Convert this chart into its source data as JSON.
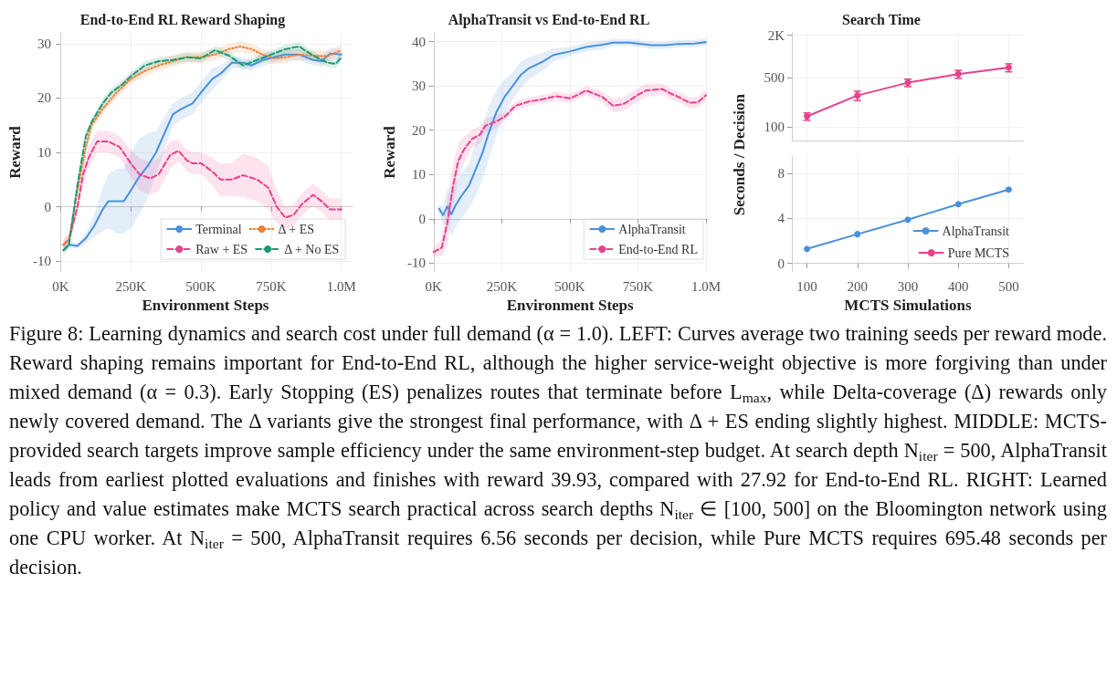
{
  "chart_data": [
    {
      "type": "line",
      "title": "End-to-End RL Reward Shaping",
      "xlabel": "Environment Steps",
      "ylabel": "Reward",
      "xlim": [
        -8000,
        1040000
      ],
      "xticks": [
        {
          "value": 0,
          "label": "0K"
        },
        {
          "value": 250000,
          "label": "250K"
        },
        {
          "value": 500000,
          "label": "500K"
        },
        {
          "value": 750000,
          "label": "750K"
        },
        {
          "value": 1000000,
          "label": "1.0M"
        }
      ],
      "ylim": [
        -12,
        32
      ],
      "yticks": [
        -10,
        0,
        10,
        20,
        30
      ],
      "grid": true,
      "legend": "bottom right",
      "marker": "none",
      "series": [
        {
          "name": "Terminal",
          "color": "#4a90d9",
          "line_style": "solid",
          "x": [
            10000,
            30000,
            60000,
            90000,
            120000,
            150000,
            170000,
            200000,
            225000,
            250000,
            280000,
            310000,
            340000,
            370000,
            400000,
            430000,
            470000,
            500000,
            540000,
            570000,
            610000,
            650000,
            680000,
            720000,
            760000,
            800000,
            850000,
            900000,
            930000,
            960000,
            1000000
          ],
          "values": [
            -8,
            -7,
            -7.2,
            -5.8,
            -3.5,
            -0.5,
            1,
            1,
            1,
            3,
            5.5,
            7.5,
            10,
            13.5,
            17,
            18,
            19,
            21,
            23.5,
            24.5,
            26.5,
            26.5,
            26,
            27,
            27.5,
            28,
            28,
            27,
            26.8,
            28.2,
            28
          ],
          "lower": [
            -8.5,
            -7.5,
            -7.7,
            -6.8,
            -5.5,
            -4.5,
            -4,
            -5,
            -5,
            -4,
            -1.5,
            1.5,
            6,
            10.5,
            15,
            16,
            17,
            19,
            21.5,
            23,
            25.5,
            25.5,
            25,
            26,
            26.5,
            27,
            27,
            26,
            25.8,
            27.2,
            27
          ],
          "upper": [
            -7.5,
            -6.5,
            -6.7,
            -4.8,
            -1.5,
            3.5,
            6,
            7,
            7,
            10,
            12.5,
            13.5,
            14,
            16.5,
            19,
            20,
            21,
            23,
            25.5,
            26,
            27.5,
            27.5,
            27,
            28,
            28.5,
            29,
            29,
            28,
            27.8,
            29.2,
            29
          ]
        },
        {
          "name": "Raw + ES",
          "color": "#e8408a",
          "line_style": "dashed",
          "x": [
            10000,
            30000,
            60000,
            80000,
            100000,
            130000,
            170000,
            210000,
            250000,
            280000,
            320000,
            350000,
            390000,
            420000,
            450000,
            470000,
            500000,
            540000,
            570000,
            610000,
            650000,
            700000,
            740000,
            770000,
            800000,
            830000,
            860000,
            900000,
            930000,
            960000,
            1000000
          ],
          "values": [
            -7,
            -6,
            0,
            6,
            9,
            12,
            12,
            11,
            8,
            6,
            5.2,
            6,
            9.5,
            10.3,
            8.5,
            8,
            8,
            6.5,
            5,
            5,
            5.8,
            5,
            3.5,
            0,
            -2,
            -1.5,
            0.5,
            2.2,
            1,
            -0.5,
            -0.5
          ],
          "lower": [
            -8,
            -7,
            -1.5,
            4,
            7,
            10,
            10,
            9,
            5.5,
            3,
            2.2,
            3,
            7,
            8.3,
            6.5,
            6,
            6,
            4,
            2,
            2,
            1.8,
            1,
            -0.5,
            -3,
            -4,
            -3.5,
            -1.5,
            0.2,
            -1,
            -2.5,
            -2.5
          ],
          "upper": [
            -6,
            -5,
            1.5,
            8,
            11,
            14,
            14,
            13,
            10.5,
            9,
            8.2,
            9,
            12,
            12.3,
            10.5,
            10,
            10,
            9,
            8,
            8,
            9.8,
            9,
            7.5,
            3,
            0,
            0.5,
            2.5,
            4.2,
            3,
            1.5,
            1.5
          ]
        },
        {
          "name": "Δ + ES",
          "color": "#f07f2f",
          "line_style": "dotted",
          "x": [
            10000,
            30000,
            60000,
            90000,
            110000,
            150000,
            200000,
            250000,
            300000,
            350000,
            400000,
            450000,
            500000,
            550000,
            600000,
            640000,
            680000,
            720000,
            760000,
            800000,
            850000,
            900000,
            950000,
            1000000
          ],
          "values": [
            -7,
            -6,
            3,
            11,
            15,
            18,
            21,
            23.5,
            25,
            26,
            26.8,
            27.5,
            27.5,
            28,
            29,
            29.5,
            29,
            28,
            27.3,
            27.5,
            28,
            27.8,
            27.7,
            28.8
          ],
          "lower": [
            -8,
            -7,
            2,
            10,
            14,
            17,
            20,
            22.5,
            24,
            25,
            25.8,
            26.5,
            26.5,
            27,
            28,
            28.5,
            28,
            27,
            26.3,
            26.5,
            27,
            26.8,
            26.7,
            27.8
          ],
          "upper": [
            -6,
            -5,
            4,
            12,
            16,
            19,
            22,
            24.5,
            26,
            27,
            27.8,
            28.5,
            28.5,
            29,
            30,
            30.5,
            30,
            29,
            28.3,
            28.5,
            29,
            28.8,
            28.7,
            29.8
          ]
        },
        {
          "name": "Δ + No ES",
          "color": "#1a9a74",
          "line_style": "dashed",
          "x": [
            10000,
            30000,
            60000,
            90000,
            110000,
            150000,
            180000,
            220000,
            250000,
            300000,
            350000,
            400000,
            450000,
            500000,
            550000,
            600000,
            650000,
            700000,
            750000,
            800000,
            850000,
            900000,
            950000,
            980000,
            1000000
          ],
          "values": [
            -8,
            -7,
            4,
            13,
            15.5,
            19,
            21,
            22.5,
            24,
            26,
            26.8,
            27,
            27.5,
            27.3,
            28.8,
            27.8,
            26,
            27,
            28,
            29,
            29.5,
            27.8,
            26.5,
            26.3,
            27.5
          ],
          "lower": [
            -8.8,
            -7.8,
            3.2,
            12.2,
            14.7,
            18.2,
            20.2,
            21.7,
            23.2,
            25.2,
            26,
            26.2,
            26.7,
            26.5,
            28,
            27,
            25.2,
            26.2,
            27.2,
            28.2,
            28.7,
            27,
            25.7,
            25.5,
            26.7
          ],
          "upper": [
            -7.2,
            -6.2,
            4.8,
            13.8,
            16.3,
            19.8,
            21.8,
            23.3,
            24.8,
            26.8,
            27.6,
            27.8,
            28.3,
            28.1,
            29.6,
            28.6,
            26.8,
            27.8,
            28.8,
            29.8,
            30.3,
            28.6,
            27.3,
            27.1,
            28.3
          ]
        }
      ],
      "annotations": [
        "Figure 8: Learning dynamics and search cost under full demand (α = 1.0). LEFT: Curves average two training seeds per reward mode. Reward shaping remains important for End-to-End RL, although the higher service-weight objective is more forgiving than under mixed demand (α = 0.3). Early Stopping (ES) penalizes routes that terminate before L$_{max}$, while Delta-coverage (Δ) rewards only newly covered demand. The Δ variants give the strongest final performance, with Δ + ES ending slightly highest. MIDDLE: MCTS-provided search targets improve sample efficiency under the same environment-step budget. At search depth N$_{iter}$ = 500, AlphaTransit leads from earliest plotted evaluations and finishes with reward 39.93, compared with 27.92 for End-to-End RL. RIGHT: Learned policy and value estimates make MCTS search practical across search depths N$_{iter}$ ∈ [100, 500] on the Bloomington network using one CPU worker. At N$_{iter}$ = 500, AlphaTransit requires 6.56 seconds per decision, while Pure MCTS requires 695.48 seconds per decision."
      ]
    },
    {
      "type": "line",
      "title": "AlphaTransit vs End-to-End RL",
      "xlabel": "Environment Steps",
      "ylabel": "Reward",
      "xlim": [
        -3000,
        1005000
      ],
      "xticks": [
        {
          "value": 0,
          "label": "0K"
        },
        {
          "value": 250000,
          "label": "250K"
        },
        {
          "value": 500000,
          "label": "500K"
        },
        {
          "value": 750000,
          "label": "750K"
        },
        {
          "value": 1000000,
          "label": "1.0M"
        }
      ],
      "ylim": [
        -12,
        42
      ],
      "yticks": [
        -10,
        0,
        10,
        20,
        30,
        40
      ],
      "grid": true,
      "legend": "bottom right",
      "marker": "none",
      "series": [
        {
          "name": "AlphaTransit",
          "color": "#4a90d9",
          "line_style": "solid",
          "x": [
            20000,
            35000,
            50000,
            65000,
            80000,
            100000,
            130000,
            150000,
            180000,
            200000,
            230000,
            260000,
            290000,
            320000,
            350000,
            400000,
            440000,
            500000,
            560000,
            620000,
            660000,
            720000,
            800000,
            850000,
            900000,
            960000,
            1000000
          ],
          "values": [
            2.3,
            0.8,
            2.8,
            1,
            3,
            5,
            7.5,
            10.5,
            15,
            19,
            24,
            27.5,
            30,
            32.5,
            34,
            35.5,
            37,
            37.8,
            38.8,
            39.3,
            39.8,
            39.8,
            39.2,
            39.2,
            39.5,
            39.6,
            39.9
          ],
          "lower": [
            1.3,
            -1.2,
            -1.2,
            -4,
            -2,
            0,
            2.5,
            4.5,
            9,
            13,
            19,
            23.5,
            27,
            29.5,
            31.5,
            33.5,
            35.5,
            36.8,
            37.8,
            38.3,
            39,
            39,
            38.4,
            38.4,
            38.7,
            38.8,
            39.13
          ],
          "upper": [
            3.3,
            2.8,
            6.8,
            6,
            8,
            10,
            12.5,
            16.5,
            21,
            25,
            29,
            31.5,
            33,
            35.5,
            36.5,
            37.5,
            38.5,
            38.8,
            39.8,
            40.3,
            40.6,
            40.6,
            40,
            40,
            40.3,
            40.4,
            40.73
          ]
        },
        {
          "name": "End-to-End RL",
          "color": "#e8408a",
          "line_style": "dashed",
          "x": [
            0,
            30000,
            50000,
            70000,
            90000,
            110000,
            140000,
            170000,
            190000,
            230000,
            260000,
            300000,
            350000,
            400000,
            450000,
            500000,
            530000,
            560000,
            620000,
            660000,
            700000,
            750000,
            780000,
            840000,
            870000,
            900000,
            940000,
            970000,
            1000000
          ],
          "values": [
            -7.5,
            -6.5,
            -1,
            7,
            13,
            15.5,
            18,
            19,
            21,
            22,
            23,
            25.5,
            26.5,
            27,
            27.7,
            27.2,
            28,
            29,
            27.5,
            25.5,
            26,
            28,
            29,
            29.3,
            28.3,
            27.5,
            26.2,
            26.3,
            27.9
          ],
          "lower": [
            -8.5,
            -8.5,
            -6,
            2,
            9,
            12.5,
            16,
            17,
            19.5,
            20.5,
            22,
            24.5,
            25.5,
            26,
            26.7,
            26.2,
            27,
            28,
            26.3,
            24,
            24.5,
            26.5,
            27.5,
            28.1,
            27.1,
            26.3,
            25,
            25.1,
            26.72
          ],
          "upper": [
            -6.5,
            -4.5,
            4,
            12,
            17,
            18.5,
            20,
            21,
            22.5,
            23.5,
            24,
            26.5,
            27.5,
            28,
            28.7,
            28.2,
            29,
            30,
            28.7,
            27,
            27.5,
            29.5,
            30.5,
            30.5,
            29.5,
            28.7,
            27.4,
            27.5,
            29.12
          ]
        }
      ]
    },
    {
      "type": "line",
      "title": "Search Time",
      "ylabel": "Seconds / Decision",
      "xlim": [
        70,
        530
      ],
      "xticks": [
        100,
        200,
        300,
        400,
        500
      ],
      "ylim": [
        64,
        2160
      ],
      "yticks": [
        100,
        500,
        {
          "value": 2000,
          "label": "2K"
        }
      ],
      "log": "y",
      "tick_labels": "y",
      "grid": true,
      "legend": "bottom right",
      "marker": "circle",
      "series": [
        {
          "name": "Pure MCTS",
          "color": "#e8408a",
          "x": [
            100,
            200,
            300,
            400,
            500
          ],
          "values": [
            141,
            279,
            424,
            562,
            695
          ],
          "errors": [
            17,
            42,
            51,
            73,
            90
          ]
        }
      ]
    },
    {
      "type": "line",
      "xlabel": "MCTS Simulations",
      "xlim": [
        70,
        530
      ],
      "xticks": [
        100,
        200,
        300,
        400,
        500
      ],
      "ylim": [
        -0.75,
        9.45
      ],
      "yticks": [
        0,
        4,
        8
      ],
      "grid": true,
      "legend": "bottom right",
      "marker": "circle",
      "series": [
        {
          "name": "AlphaTransit",
          "color": "#4a90d9",
          "x": [
            100,
            200,
            300,
            400,
            500
          ],
          "values": [
            1.29,
            2.6,
            3.89,
            5.26,
            6.56
          ]
        }
      ]
    }
  ]
}
